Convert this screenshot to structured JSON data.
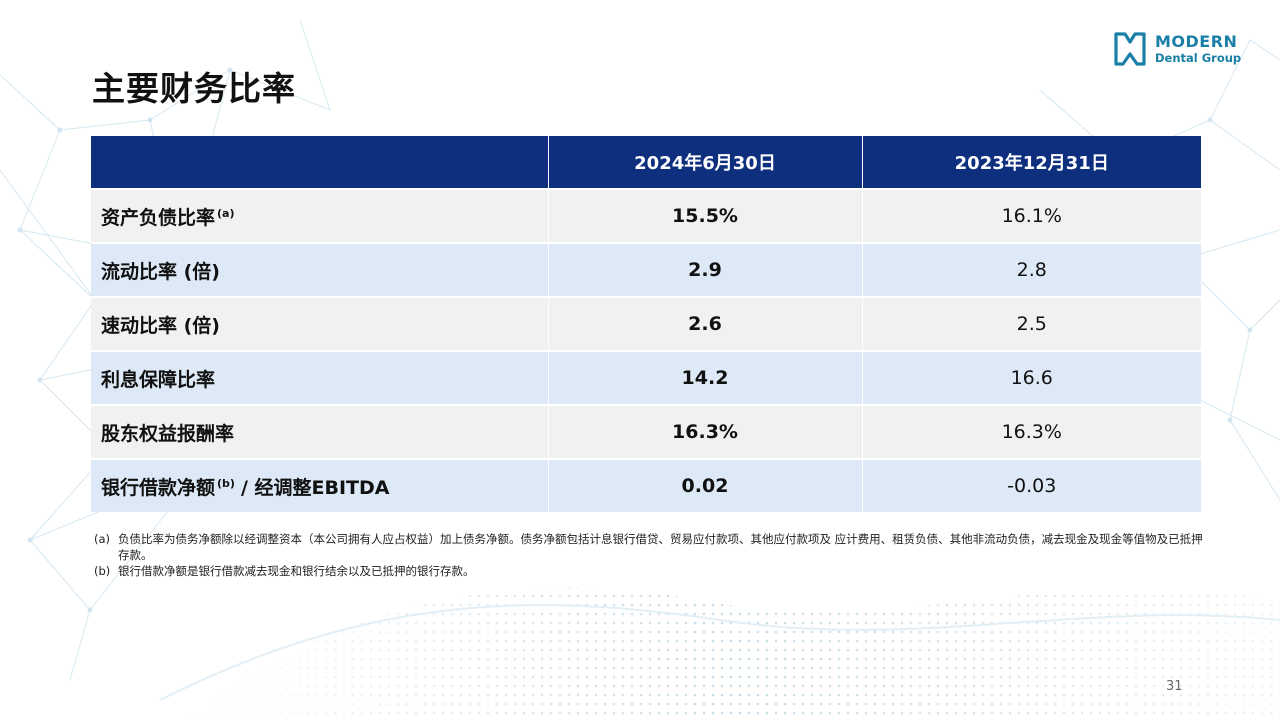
{
  "logo": {
    "line1": "MODERN",
    "line2": "Dental Group",
    "icon": "tooth-bracket-logo-icon",
    "color": "#1a7fa6"
  },
  "title": "主要财务比率",
  "table": {
    "headers": [
      "",
      "2024年6月30日",
      "2023年12月31日"
    ],
    "rows": [
      {
        "label": "资产负债比率",
        "sup": "(a)",
        "label_suffix": "",
        "current": "15.5%",
        "previous": "16.1%"
      },
      {
        "label": "流动比率 (倍)",
        "sup": "",
        "label_suffix": "",
        "current": "2.9",
        "previous": "2.8"
      },
      {
        "label": "速动比率 (倍)",
        "sup": "",
        "label_suffix": "",
        "current": "2.6",
        "previous": "2.5"
      },
      {
        "label": "利息保障比率",
        "sup": "",
        "label_suffix": "",
        "current": "14.2",
        "previous": "16.6"
      },
      {
        "label": "股东权益报酬率",
        "sup": "",
        "label_suffix": "",
        "current": "16.3%",
        "previous": "16.3%"
      },
      {
        "label": "银行借款净额",
        "sup": "(b)",
        "label_suffix": "/ 经调整EBITDA",
        "current": "0.02",
        "previous": "-0.03"
      }
    ]
  },
  "notes": [
    {
      "marker": "(a)",
      "text": "负债比率为债务净额除以经调整资本（本公司拥有人应占权益）加上债务净额。债务净额包括计息银行借贷、贸易应付款项、其他应付款项及 应计费用、租赁负债、其他非流动负债，减去现金及现金等值物及已抵押存款。"
    },
    {
      "marker": "(b)",
      "text": "银行借款净额是银行借款减去现金和银行结余以及已抵押的银行存款。"
    }
  ],
  "page_number": "31",
  "colors": {
    "header_bg": "#0e2f7e",
    "row_odd": "#f1f1f1",
    "row_even": "#dde9f6",
    "bg_pattern": "#cfe3ef"
  }
}
